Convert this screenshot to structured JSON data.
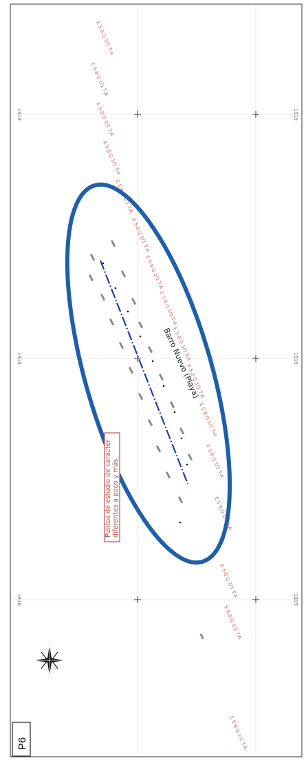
{
  "sheet_id": "P6",
  "area_name": "Barro Nuevo (Playa)",
  "note_lines": [
    "Puntos de estudio de carácter",
    "diferentes a poco y más"
  ],
  "grid_ticks": {
    "left": [
      "1818",
      "1818",
      "1818"
    ],
    "right": [
      "1819",
      "1819",
      "1819"
    ]
  },
  "coordinate_labels": [
    "E 5-8 Q 1/1 T-A",
    "E 5-8 Q 1/1 T-A",
    "E 5-8 Q 1/1 T-A",
    "E 5-8 Q 1/1 T-A",
    "E 5-8 Q 1/1 T-A",
    "E 5-8 Q 1/1 T-A",
    "E 5-8 Q 1/1 T-A",
    "E 5-8 Q 1/1 T-A",
    "E 5-8 Q 1/1 T-A",
    "E 5-8 Q 1/1 T-A",
    "E 5-8 Q 1/1 T-A",
    "E 5-8 Q 1/1 T-A",
    "E 5-8 Q 1/1 T-A",
    "E 5-8 Q 1/1 T-A",
    "E 5-8 Q 1/1 T-A",
    "E 5-8 Q 1/1 T-A"
  ],
  "colors": {
    "ellipse": "#1f5fa8",
    "survey_line": "#1a3fa0",
    "coord_text": "#c0504d",
    "grid": "#d2d2d2"
  },
  "icons": {
    "north_arrow": "compass-star-icon"
  }
}
